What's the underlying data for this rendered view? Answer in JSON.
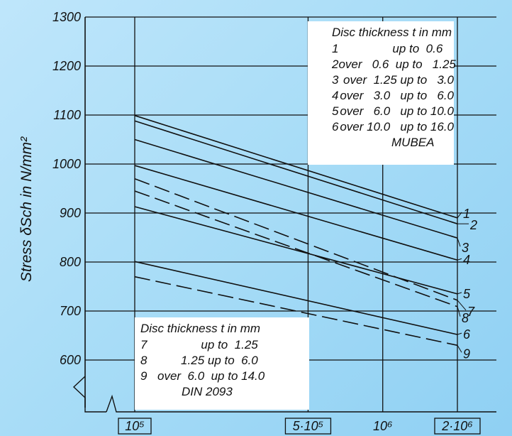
{
  "colors": {
    "line": "#111111",
    "background_light": "#bfe6fb",
    "background_dark": "#8fd0f3"
  },
  "chart_data": {
    "type": "line",
    "ylabel": "Stress δSch in N/mm²",
    "ylim": [
      550,
      1300
    ],
    "x_scale": "log",
    "xlim": [
      70000,
      2500000
    ],
    "grid": true,
    "y_ticks": [
      "1300",
      "1200",
      "1100",
      "1000",
      "900",
      "800",
      "700",
      "600"
    ],
    "x_ticks": [
      {
        "label": "10⁵",
        "value": 100000,
        "boxed": true
      },
      {
        "label": "5·10⁵",
        "value": 500000,
        "boxed": true
      },
      {
        "label": "10⁶",
        "value": 1000000,
        "boxed": false
      },
      {
        "label": "2·10⁶",
        "value": 2000000,
        "boxed": true
      }
    ],
    "series": [
      {
        "name": "1",
        "style": "solid",
        "x": [
          100000,
          2000000
        ],
        "y": [
          1099,
          890
        ]
      },
      {
        "name": "2",
        "style": "solid",
        "x": [
          100000,
          2000000
        ],
        "y": [
          1088,
          878
        ]
      },
      {
        "name": "3",
        "style": "solid",
        "x": [
          100000,
          2000000
        ],
        "y": [
          1050,
          849
        ]
      },
      {
        "name": "4",
        "style": "solid",
        "x": [
          100000,
          2000000
        ],
        "y": [
          997,
          804
        ]
      },
      {
        "name": "5",
        "style": "solid",
        "x": [
          100000,
          2000000
        ],
        "y": [
          913,
          735
        ]
      },
      {
        "name": "6",
        "style": "solid",
        "x": [
          100000,
          2000000
        ],
        "y": [
          801,
          652
        ]
      },
      {
        "name": "7",
        "style": "dashed",
        "x": [
          100000,
          2000000
        ],
        "y": [
          970,
          722
        ]
      },
      {
        "name": "8",
        "style": "dashed",
        "x": [
          100000,
          2000000
        ],
        "y": [
          945,
          709
        ]
      },
      {
        "name": "9",
        "style": "dashed",
        "x": [
          100000,
          2000000
        ],
        "y": [
          770,
          630
        ]
      }
    ]
  },
  "legend_mubea": {
    "title": "Disc thickness t in mm",
    "rows": [
      {
        "n": "1",
        "text": "             up to  0.6"
      },
      {
        "n": "2",
        "text": "over   0.6  up to   1.25"
      },
      {
        "n": "3",
        "text": "over  1.25 up to   3.0"
      },
      {
        "n": "4",
        "text": "over   3.0   up to   6.0"
      },
      {
        "n": "5",
        "text": "over   6.0   up to 10.0"
      },
      {
        "n": "6",
        "text": "over 10.0   up to 16.0"
      }
    ],
    "source": "MUBEA"
  },
  "legend_din": {
    "title": "Disc thickness t in mm",
    "rows": [
      {
        "n": "7",
        "text": "             up to  1.25"
      },
      {
        "n": "8",
        "text": "       1.25 up to  6.0"
      },
      {
        "n": "9",
        "text": "over  6.0  up to 14.0"
      }
    ],
    "source": "DIN 2093"
  }
}
